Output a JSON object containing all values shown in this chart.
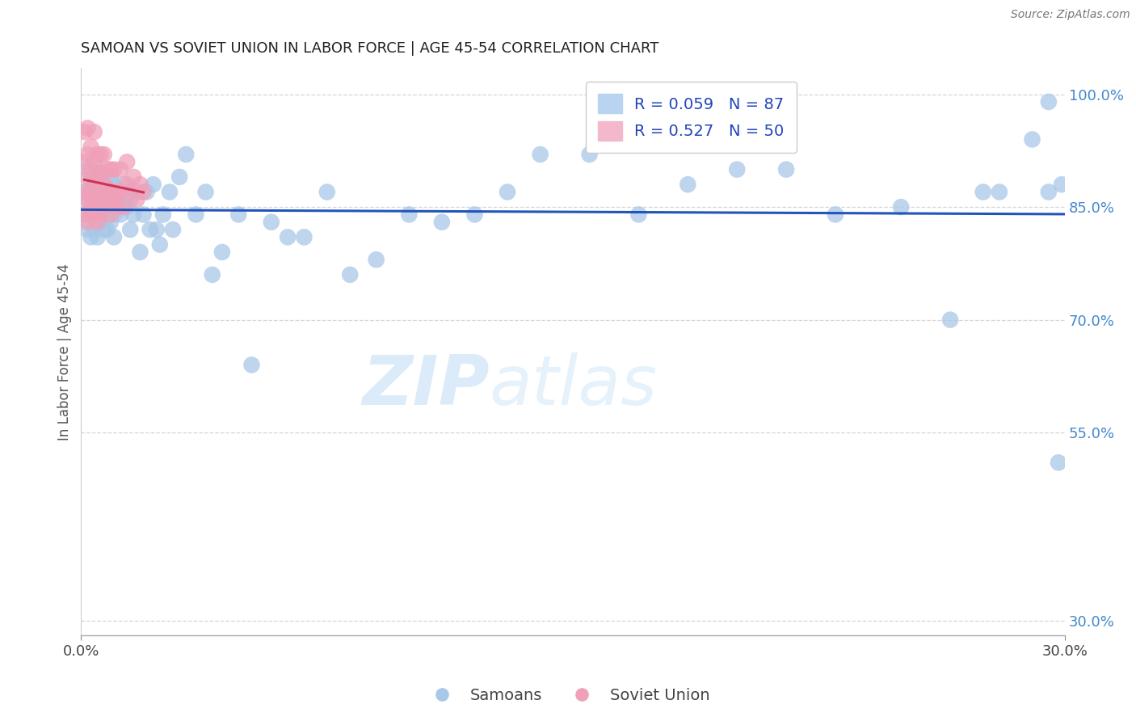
{
  "title": "SAMOAN VS SOVIET UNION IN LABOR FORCE | AGE 45-54 CORRELATION CHART",
  "source": "Source: ZipAtlas.com",
  "ylabel": "In Labor Force | Age 45-54",
  "xmin": 0.0,
  "xmax": 0.3,
  "ymin": 0.28,
  "ymax": 1.035,
  "ytick_positions": [
    1.0,
    0.85,
    0.7,
    0.55,
    0.3
  ],
  "yticklabels": [
    "100.0%",
    "85.0%",
    "70.0%",
    "55.0%",
    "30.0%"
  ],
  "blue_color": "#a8c8e8",
  "pink_color": "#f0a0b8",
  "trendline_blue_color": "#2255bb",
  "trendline_pink_color": "#cc3355",
  "legend_text_color": "#2244bb",
  "watermark_zip": "ZIP",
  "watermark_atlas": "atlas",
  "samoans_x": [
    0.001,
    0.001,
    0.002,
    0.002,
    0.002,
    0.003,
    0.003,
    0.003,
    0.003,
    0.004,
    0.004,
    0.004,
    0.005,
    0.005,
    0.005,
    0.005,
    0.006,
    0.006,
    0.006,
    0.007,
    0.007,
    0.007,
    0.008,
    0.008,
    0.008,
    0.009,
    0.009,
    0.009,
    0.01,
    0.01,
    0.01,
    0.01,
    0.011,
    0.011,
    0.012,
    0.012,
    0.013,
    0.013,
    0.014,
    0.015,
    0.015,
    0.016,
    0.017,
    0.018,
    0.019,
    0.02,
    0.021,
    0.022,
    0.023,
    0.024,
    0.025,
    0.027,
    0.028,
    0.03,
    0.032,
    0.035,
    0.038,
    0.04,
    0.043,
    0.048,
    0.052,
    0.058,
    0.063,
    0.068,
    0.075,
    0.082,
    0.09,
    0.1,
    0.11,
    0.12,
    0.13,
    0.14,
    0.155,
    0.17,
    0.185,
    0.2,
    0.215,
    0.23,
    0.25,
    0.265,
    0.275,
    0.28,
    0.29,
    0.295,
    0.298,
    0.299,
    0.295
  ],
  "samoans_y": [
    0.84,
    0.87,
    0.82,
    0.86,
    0.9,
    0.81,
    0.84,
    0.87,
    0.885,
    0.82,
    0.85,
    0.88,
    0.81,
    0.84,
    0.87,
    0.9,
    0.83,
    0.86,
    0.89,
    0.82,
    0.85,
    0.88,
    0.82,
    0.85,
    0.87,
    0.83,
    0.86,
    0.89,
    0.81,
    0.84,
    0.86,
    0.88,
    0.85,
    0.87,
    0.84,
    0.87,
    0.86,
    0.88,
    0.85,
    0.82,
    0.86,
    0.84,
    0.87,
    0.79,
    0.84,
    0.87,
    0.82,
    0.88,
    0.82,
    0.8,
    0.84,
    0.87,
    0.82,
    0.89,
    0.92,
    0.84,
    0.87,
    0.76,
    0.79,
    0.84,
    0.64,
    0.83,
    0.81,
    0.81,
    0.87,
    0.76,
    0.78,
    0.84,
    0.83,
    0.84,
    0.87,
    0.92,
    0.92,
    0.84,
    0.88,
    0.9,
    0.9,
    0.84,
    0.85,
    0.7,
    0.87,
    0.87,
    0.94,
    0.87,
    0.51,
    0.88,
    0.99
  ],
  "soviet_x": [
    0.001,
    0.001,
    0.001,
    0.001,
    0.002,
    0.002,
    0.002,
    0.002,
    0.002,
    0.003,
    0.003,
    0.003,
    0.003,
    0.003,
    0.004,
    0.004,
    0.004,
    0.004,
    0.004,
    0.005,
    0.005,
    0.005,
    0.005,
    0.006,
    0.006,
    0.006,
    0.006,
    0.007,
    0.007,
    0.007,
    0.008,
    0.008,
    0.008,
    0.009,
    0.009,
    0.009,
    0.01,
    0.01,
    0.011,
    0.011,
    0.012,
    0.012,
    0.013,
    0.014,
    0.014,
    0.015,
    0.016,
    0.017,
    0.018,
    0.019
  ],
  "soviet_y": [
    0.84,
    0.87,
    0.91,
    0.95,
    0.83,
    0.86,
    0.89,
    0.92,
    0.955,
    0.85,
    0.87,
    0.9,
    0.84,
    0.93,
    0.86,
    0.88,
    0.91,
    0.84,
    0.95,
    0.83,
    0.87,
    0.89,
    0.92,
    0.84,
    0.86,
    0.895,
    0.92,
    0.85,
    0.88,
    0.92,
    0.855,
    0.875,
    0.9,
    0.84,
    0.87,
    0.9,
    0.86,
    0.9,
    0.87,
    0.85,
    0.87,
    0.9,
    0.85,
    0.88,
    0.91,
    0.87,
    0.89,
    0.86,
    0.88,
    0.87
  ],
  "grid_color": "#cccccc",
  "bg_color": "#ffffff"
}
